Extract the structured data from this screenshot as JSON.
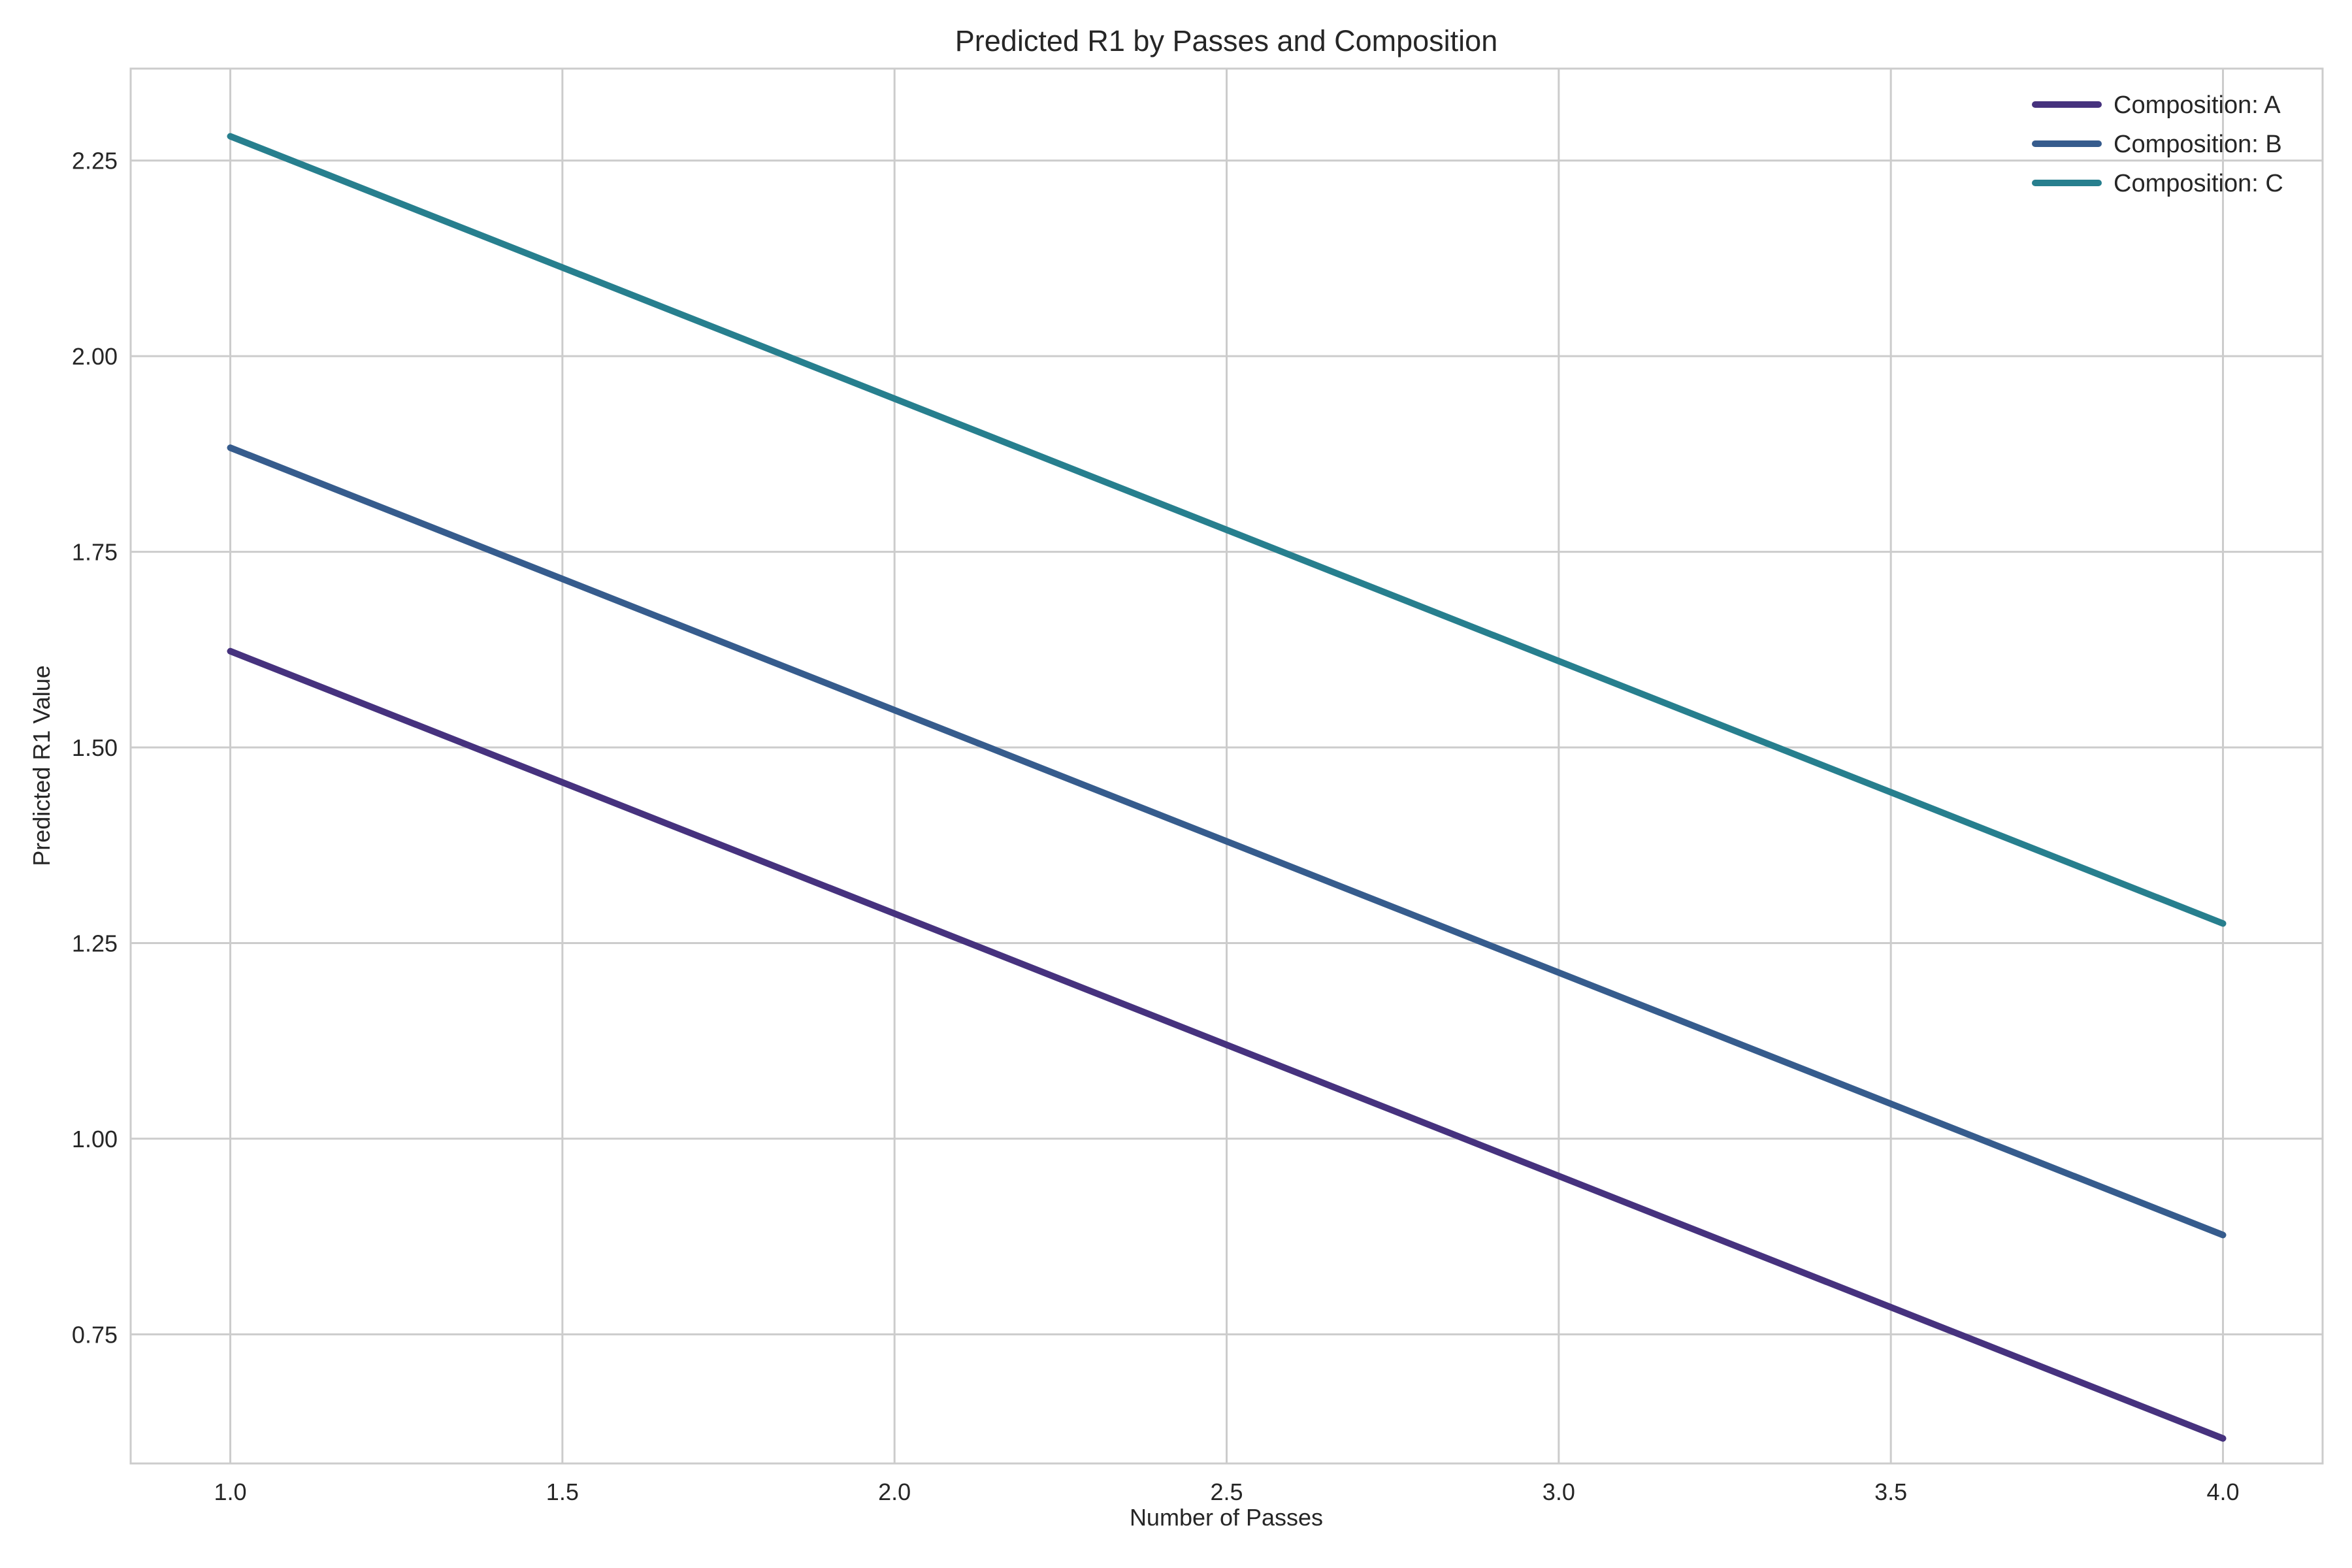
{
  "chart_data": {
    "type": "line",
    "title": "Predicted R1 by Passes and Composition",
    "xlabel": "Number of Passes",
    "ylabel": "Predicted R1 Value",
    "xlim": [
      0.85,
      4.15
    ],
    "ylim": [
      0.585,
      2.3675
    ],
    "xticks": [
      "1.0",
      "1.5",
      "2.0",
      "2.5",
      "3.0",
      "3.5",
      "4.0"
    ],
    "yticks": [
      "0.75",
      "1.00",
      "1.25",
      "1.50",
      "1.75",
      "2.00",
      "2.25"
    ],
    "grid": true,
    "legend_position": "top-right",
    "series": [
      {
        "name": "Composition: A",
        "color": "#46327e",
        "x": [
          1.0,
          4.0
        ],
        "y": [
          1.623,
          0.617
        ]
      },
      {
        "name": "Composition: B",
        "color": "#365c8d",
        "x": [
          1.0,
          4.0
        ],
        "y": [
          1.883,
          0.877
        ]
      },
      {
        "name": "Composition: C",
        "color": "#277f8e",
        "x": [
          1.0,
          4.0
        ],
        "y": [
          2.281,
          1.275
        ]
      }
    ]
  }
}
